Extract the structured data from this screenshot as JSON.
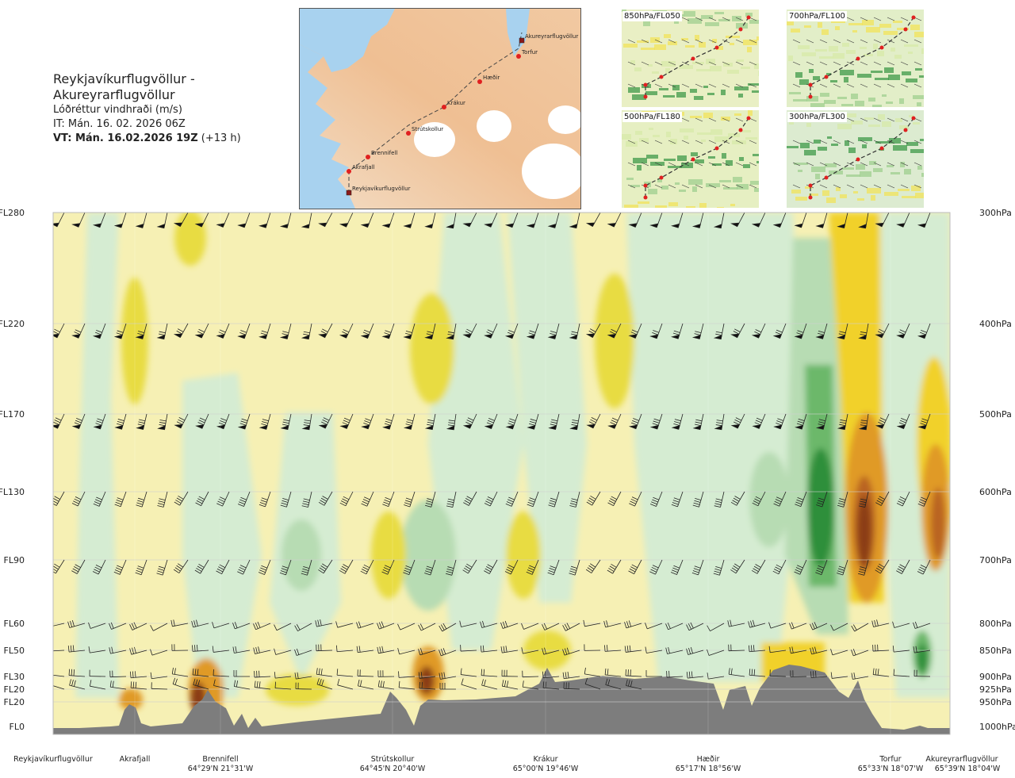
{
  "header": {
    "route": "Reykjavíkurflugvöllur - Akureyrarflugvöllur",
    "variable": "Lóðréttur vindhraði (m/s)",
    "issue_time": "IT: Mán. 16. 02. 2026 06Z",
    "valid_time": "VT: Mán. 16.02.2026 19Z",
    "lead_time": "(+13 h)"
  },
  "map": {
    "places": [
      "Akureyrarflugvöllur",
      "Torfur",
      "Hæðir",
      "Krákur",
      "Strútskollur",
      "Brennifell",
      "Akrafjall",
      "Reykjavíkurflugvöllur"
    ]
  },
  "thumbnails": [
    {
      "label": "850hPa/FL050"
    },
    {
      "label": "700hPa/FL100"
    },
    {
      "label": "500hPa/FL180"
    },
    {
      "label": "300hPa/FL300"
    }
  ],
  "chart_data": {
    "type": "heatmap",
    "title": "Lóðréttur vindhraði (m/s)",
    "flight_levels": [
      "FL280",
      "FL220",
      "FL170",
      "FL130",
      "FL90",
      "FL60",
      "FL50",
      "FL30",
      "FL20",
      "FL20",
      "FL0"
    ],
    "pressure_levels": [
      "300hPa",
      "400hPa",
      "500hPa",
      "600hPa",
      "700hPa",
      "800hPa",
      "850hPa",
      "900hPa",
      "925hPa",
      "950hPa",
      "1000hPa"
    ],
    "waypoints": [
      {
        "name": "Reykjavíkurflugvöllur",
        "coord": ""
      },
      {
        "name": "Akrafjall",
        "coord": ""
      },
      {
        "name": "Brennifell",
        "coord": "64°29'N 21°31'W"
      },
      {
        "name": "Strútskollur",
        "coord": "64°45'N 20°40'W"
      },
      {
        "name": "Krákur",
        "coord": "65°00'N 19°46'W"
      },
      {
        "name": "Hæðir",
        "coord": "65°17'N 18°56'W"
      },
      {
        "name": "Torfur",
        "coord": "65°33'N 18°07'W"
      },
      {
        "name": "Akureyrarflugvöllur",
        "coord": "65°39'N 18°04'W"
      }
    ],
    "grid": true
  }
}
